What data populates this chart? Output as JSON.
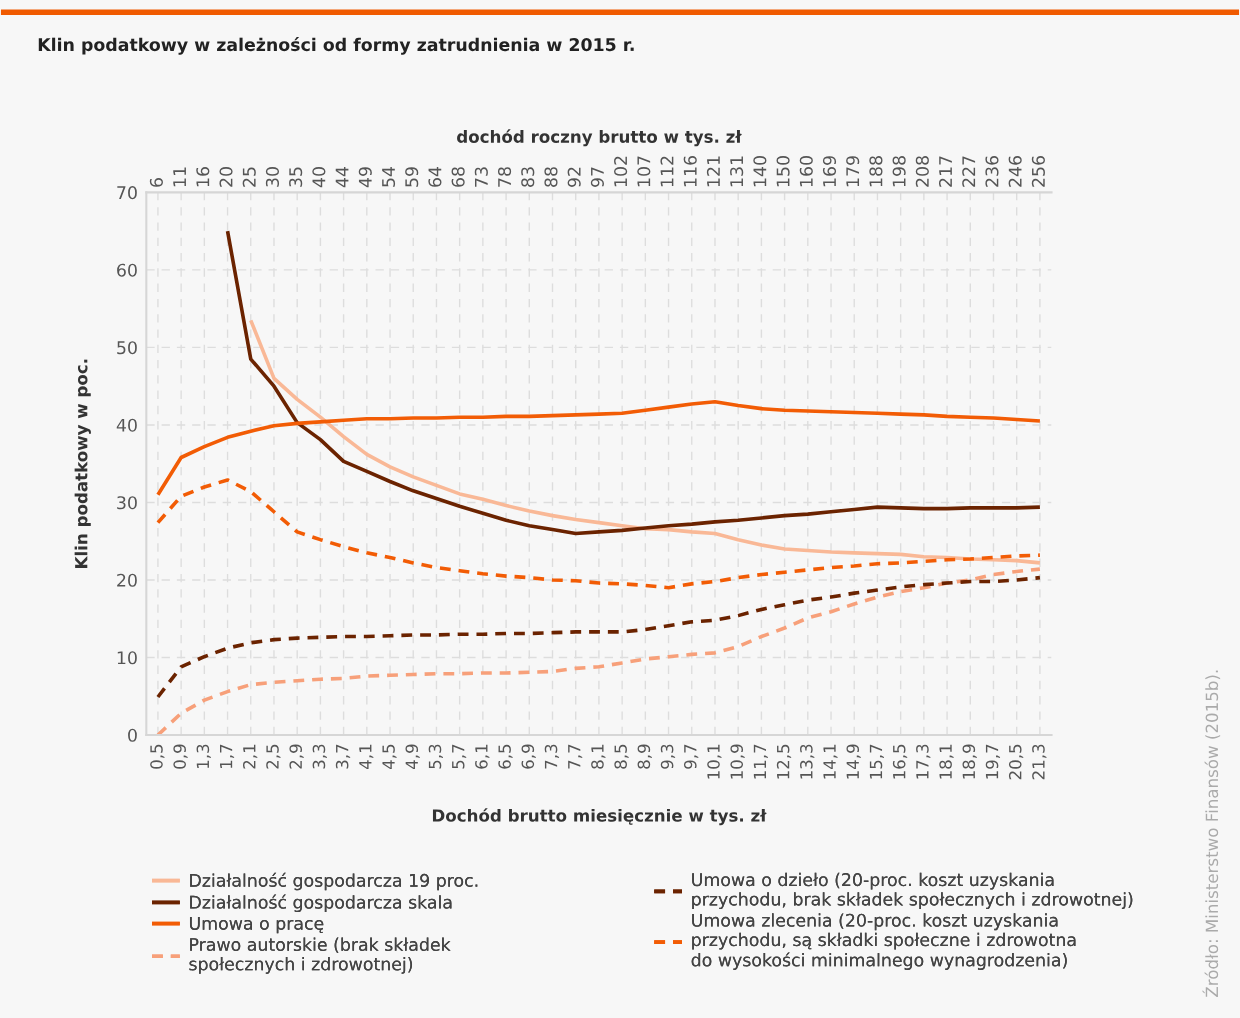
{
  "chart_data": {
    "type": "line",
    "title": "Klin podatkowy w zależności od formy zatrudnienia w 2015 r.",
    "xlabel": "Dochód brutto miesięcznie w tys. zł",
    "x2label": "dochód roczny brutto w tys. zł",
    "ylabel": "Klin podatkowy w poc.",
    "categories": [
      "0,5",
      "0,9",
      "1,3",
      "1,7",
      "2,1",
      "2,5",
      "2,9",
      "3,3",
      "3,7",
      "4,1",
      "4,5",
      "4,9",
      "5,3",
      "5,7",
      "6,1",
      "6,5",
      "6,9",
      "7,3",
      "7,7",
      "8,1",
      "8,5",
      "8,9",
      "9,3",
      "9,7",
      "10,1",
      "10,9",
      "11,7",
      "12,5",
      "13,3",
      "14,1",
      "14,9",
      "15,7",
      "16,5",
      "17,3",
      "18,1",
      "18,9",
      "19,7",
      "20,5",
      "21,3"
    ],
    "ylim": [
      0,
      70
    ],
    "yticks": [
      0,
      10,
      20,
      30,
      40,
      50,
      60,
      70
    ],
    "grid": true,
    "legend": "bottom",
    "marker": "none",
    "annotations": [
      "6",
      "11",
      "16",
      "20",
      "25",
      "30",
      "35",
      "40",
      "44",
      "49",
      "54",
      "59",
      "64",
      "68",
      "73",
      "78",
      "83",
      "88",
      "92",
      "97",
      "102",
      "107",
      "112",
      "116",
      "121",
      "131",
      "140",
      "150",
      "160",
      "169",
      "179",
      "188",
      "198",
      "208",
      "217",
      "227",
      "236",
      "246",
      "256",
      "Źródło: Ministerstwo Finansów (2015b)."
    ],
    "series": [
      {
        "name": "Działalność gospodarcza 19 proc.",
        "color": "#f9b896",
        "line_style": "solid",
        "values": [
          null,
          null,
          null,
          null,
          53.5,
          46,
          43.3,
          41,
          38.5,
          36.2,
          34.6,
          33.3,
          32.2,
          31.1,
          30.4,
          29.6,
          28.9,
          28.3,
          27.8,
          27.4,
          27.0,
          26.6,
          26.5,
          26.2,
          26.0,
          25.2,
          24.5,
          24.0,
          23.8,
          23.6,
          23.5,
          23.4,
          23.3,
          23.0,
          22.9,
          22.7,
          22.6,
          22.5,
          22.2
        ]
      },
      {
        "name": "Działalność gospodarcza skala",
        "color": "#6b2300",
        "line_style": "solid",
        "values": [
          null,
          null,
          null,
          65,
          48.5,
          45,
          40.3,
          38.1,
          35.3,
          34.0,
          32.7,
          31.5,
          30.5,
          29.5,
          28.6,
          27.7,
          27.0,
          26.5,
          26.0,
          26.2,
          26.4,
          26.7,
          27.0,
          27.2,
          27.5,
          27.7,
          28.0,
          28.3,
          28.5,
          28.8,
          29.1,
          29.4,
          29.3,
          29.2,
          29.2,
          29.3,
          29.3,
          29.3,
          29.4
        ]
      },
      {
        "name": "Umowa o pracę",
        "color": "#f25c05",
        "line_style": "solid",
        "values": [
          31.0,
          35.8,
          37.2,
          38.4,
          39.2,
          39.9,
          40.2,
          40.4,
          40.6,
          40.8,
          40.8,
          40.9,
          40.9,
          41.0,
          41.0,
          41.1,
          41.1,
          41.2,
          41.3,
          41.4,
          41.5,
          41.9,
          42.3,
          42.7,
          43.0,
          42.5,
          42.1,
          41.9,
          41.8,
          41.7,
          41.6,
          41.5,
          41.4,
          41.3,
          41.1,
          41.0,
          40.9,
          40.7,
          40.5
        ]
      },
      {
        "name": "Prawo autorskie (brak składek\nspołecznych i zdrowotnej)",
        "color": "#f7a07a",
        "line_style": "dashed",
        "values": [
          0,
          2.8,
          4.5,
          5.6,
          6.5,
          6.8,
          7.0,
          7.2,
          7.3,
          7.6,
          7.7,
          7.8,
          7.9,
          7.9,
          8.0,
          8.0,
          8.1,
          8.2,
          8.6,
          8.8,
          9.3,
          9.8,
          10.1,
          10.4,
          10.6,
          11.4,
          12.7,
          13.8,
          15.1,
          15.9,
          16.9,
          17.8,
          18.5,
          19.0,
          19.6,
          20.0,
          20.7,
          21.1,
          21.4
        ]
      },
      {
        "name": "Umowa o dzieło (20-proc. koszt uzyskania\nprzychodu, brak składek społecznych i zdrowotnej)",
        "color": "#6b2300",
        "line_style": "dashed",
        "values": [
          4.9,
          8.8,
          10.1,
          11.2,
          11.9,
          12.3,
          12.5,
          12.6,
          12.7,
          12.7,
          12.8,
          12.9,
          12.9,
          13.0,
          13.0,
          13.1,
          13.1,
          13.2,
          13.3,
          13.3,
          13.3,
          13.6,
          14.1,
          14.6,
          14.8,
          15.4,
          16.2,
          16.8,
          17.4,
          17.8,
          18.3,
          18.7,
          19.1,
          19.4,
          19.6,
          19.8,
          19.8,
          20.0,
          20.3
        ]
      },
      {
        "name": "Umowa zlecenia (20-proc. koszt uzyskania\nprzychodu, są składki społeczne i zdrowotna\ndo wysokości minimalnego wynagrodzenia)",
        "color": "#f25c05",
        "line_style": "dashed",
        "values": [
          27.4,
          30.8,
          32.0,
          32.9,
          31.4,
          28.8,
          26.2,
          25.2,
          24.3,
          23.5,
          22.9,
          22.2,
          21.6,
          21.2,
          20.8,
          20.5,
          20.3,
          20.0,
          19.9,
          19.6,
          19.5,
          19.3,
          19.0,
          19.5,
          19.8,
          20.3,
          20.7,
          21.0,
          21.3,
          21.6,
          21.8,
          22.1,
          22.2,
          22.4,
          22.6,
          22.7,
          22.9,
          23.1,
          23.2
        ]
      }
    ]
  }
}
